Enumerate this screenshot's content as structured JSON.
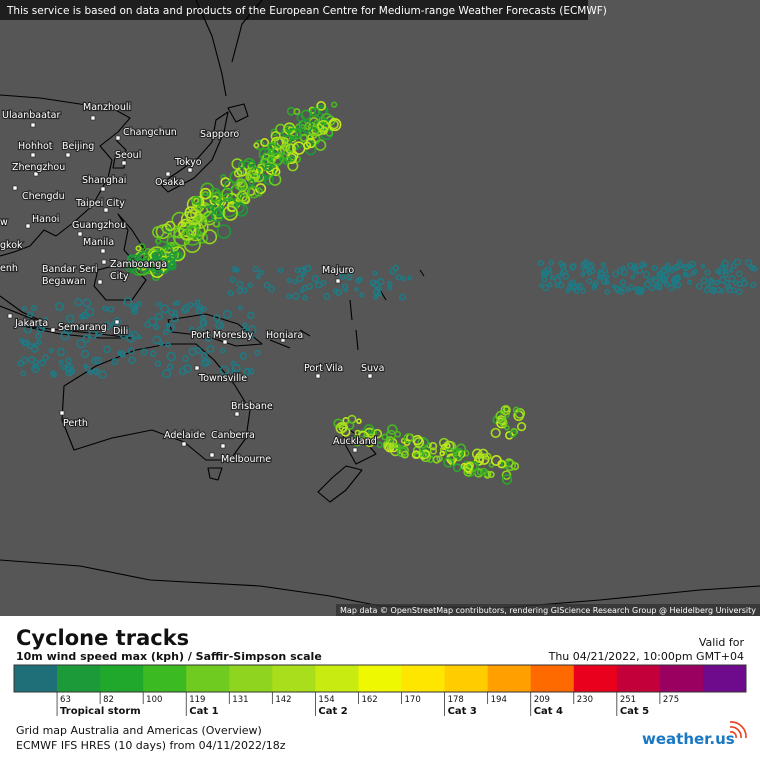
{
  "banner": "This service is based on data and products of the European Centre for Medium-range Weather Forecasts (ECMWF)",
  "map": {
    "cities": [
      {
        "lines": [
          "Ulaanbaatar"
        ]
      },
      {
        "lines": [
          "Manzhouli"
        ]
      },
      {
        "lines": [
          "Changchun"
        ]
      },
      {
        "lines": [
          "Sapporo"
        ]
      },
      {
        "lines": [
          "Hohhot"
        ]
      },
      {
        "lines": [
          "Beijing"
        ]
      },
      {
        "lines": [
          "Seoul"
        ]
      },
      {
        "lines": [
          "Zhengzhou"
        ]
      },
      {
        "lines": [
          "Tokyo"
        ]
      },
      {
        "lines": [
          "Osaka"
        ]
      },
      {
        "lines": [
          "Shanghai"
        ]
      },
      {
        "lines": [
          "Chengdu"
        ]
      },
      {
        "lines": [
          "Taipei City"
        ]
      },
      {
        "lines": [
          "Hanoi"
        ]
      },
      {
        "lines": [
          "Guangzhou"
        ]
      },
      {
        "lines": [
          "Manila"
        ]
      },
      {
        "lines": [
          "Zamboanga",
          "City"
        ]
      },
      {
        "lines": [
          "Bandar Seri",
          "Begawan"
        ]
      },
      {
        "lines": [
          "Majuro"
        ]
      },
      {
        "lines": [
          "Jakarta"
        ]
      },
      {
        "lines": [
          "Semarang"
        ]
      },
      {
        "lines": [
          "Dili"
        ]
      },
      {
        "lines": [
          "Port Moresby"
        ]
      },
      {
        "lines": [
          "Honiara"
        ]
      },
      {
        "lines": [
          "Port Vila"
        ]
      },
      {
        "lines": [
          "Suva"
        ]
      },
      {
        "lines": [
          "Townsville"
        ]
      },
      {
        "lines": [
          "Brisbane"
        ]
      },
      {
        "lines": [
          "Perth"
        ]
      },
      {
        "lines": [
          "Adelaide"
        ]
      },
      {
        "lines": [
          "Canberra"
        ]
      },
      {
        "lines": [
          "Melbourne"
        ]
      },
      {
        "lines": [
          "Auckland"
        ]
      },
      {
        "lines": [
          "w"
        ]
      },
      {
        "lines": [
          "gkok"
        ]
      },
      {
        "lines": [
          "enh"
        ]
      }
    ],
    "attribution": "Map data © OpenStreetMap contributors, rendering GIScience Research Group @ Heidelberg University"
  },
  "legend": {
    "title": "Cyclone tracks",
    "subtitle": "10m wind speed max (kph) / Saffir-Simpson scale",
    "valid_label": "Valid for",
    "valid_time": "Thu 04/21/2022, 10:00pm GMT+04",
    "colors": [
      "#1f6f78",
      "#1c9a3a",
      "#1fa82c",
      "#3cba22",
      "#6fcb20",
      "#8fd41e",
      "#a9de1c",
      "#c8ec12",
      "#eef800",
      "#ffe600",
      "#ffcc00",
      "#ff9f00",
      "#ff6a00",
      "#e8001c",
      "#c4003a",
      "#9a0060",
      "#6e0a8c"
    ],
    "ticks": [
      63,
      82,
      100,
      119,
      131,
      142,
      154,
      162,
      170,
      178,
      194,
      209,
      230,
      251,
      275
    ],
    "categories": [
      "Tropical storm",
      "Cat 1",
      "Cat 2",
      "Cat 3",
      "Cat 4",
      "Cat 5"
    ]
  },
  "footer": {
    "grid": "Grid map Australia and Americas (Overview)",
    "model": "ECMWF IFS HRES (10 days) from 04/11/2022/18z",
    "logo": "weather.us"
  }
}
